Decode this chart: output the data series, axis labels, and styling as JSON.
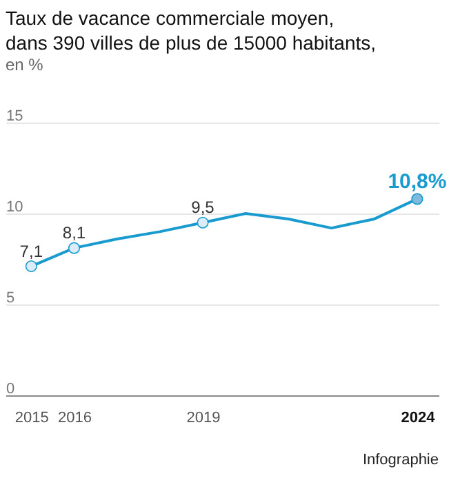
{
  "chart_data": {
    "type": "line",
    "title": [
      "Taux de vacance commerciale moyen,",
      "dans 390 villes de plus de 15000 habitants,"
    ],
    "subtitle": "en %",
    "x": [
      2015,
      2016,
      2017,
      2018,
      2019,
      2020,
      2021,
      2022,
      2023,
      2024
    ],
    "series": [
      {
        "color": "#1a9bd0",
        "values": [
          7.1,
          8.1,
          8.6,
          9.0,
          9.5,
          10.0,
          9.7,
          9.2,
          9.7,
          10.8
        ]
      },
      {
        "type": "scatter",
        "marker": "circle",
        "x": [
          2015,
          2016,
          2019,
          2024
        ],
        "values": [
          7.1,
          8.1,
          9.5,
          10.8
        ],
        "colors": [
          "#dcedf8",
          "#dcedf8",
          "#dcedf8",
          "#7fb9dc"
        ],
        "value_labels": [
          "7,1",
          "8,1",
          "9,5",
          "10,8%"
        ]
      }
    ],
    "xlim": [
      2014.4,
      2024.5
    ],
    "xticks": [
      2015,
      2016,
      2019,
      2024
    ],
    "ylim": [
      0,
      15
    ],
    "yticks": [
      0,
      5,
      10,
      15
    ],
    "grid": "y",
    "annotations": [
      "Infographie"
    ]
  }
}
